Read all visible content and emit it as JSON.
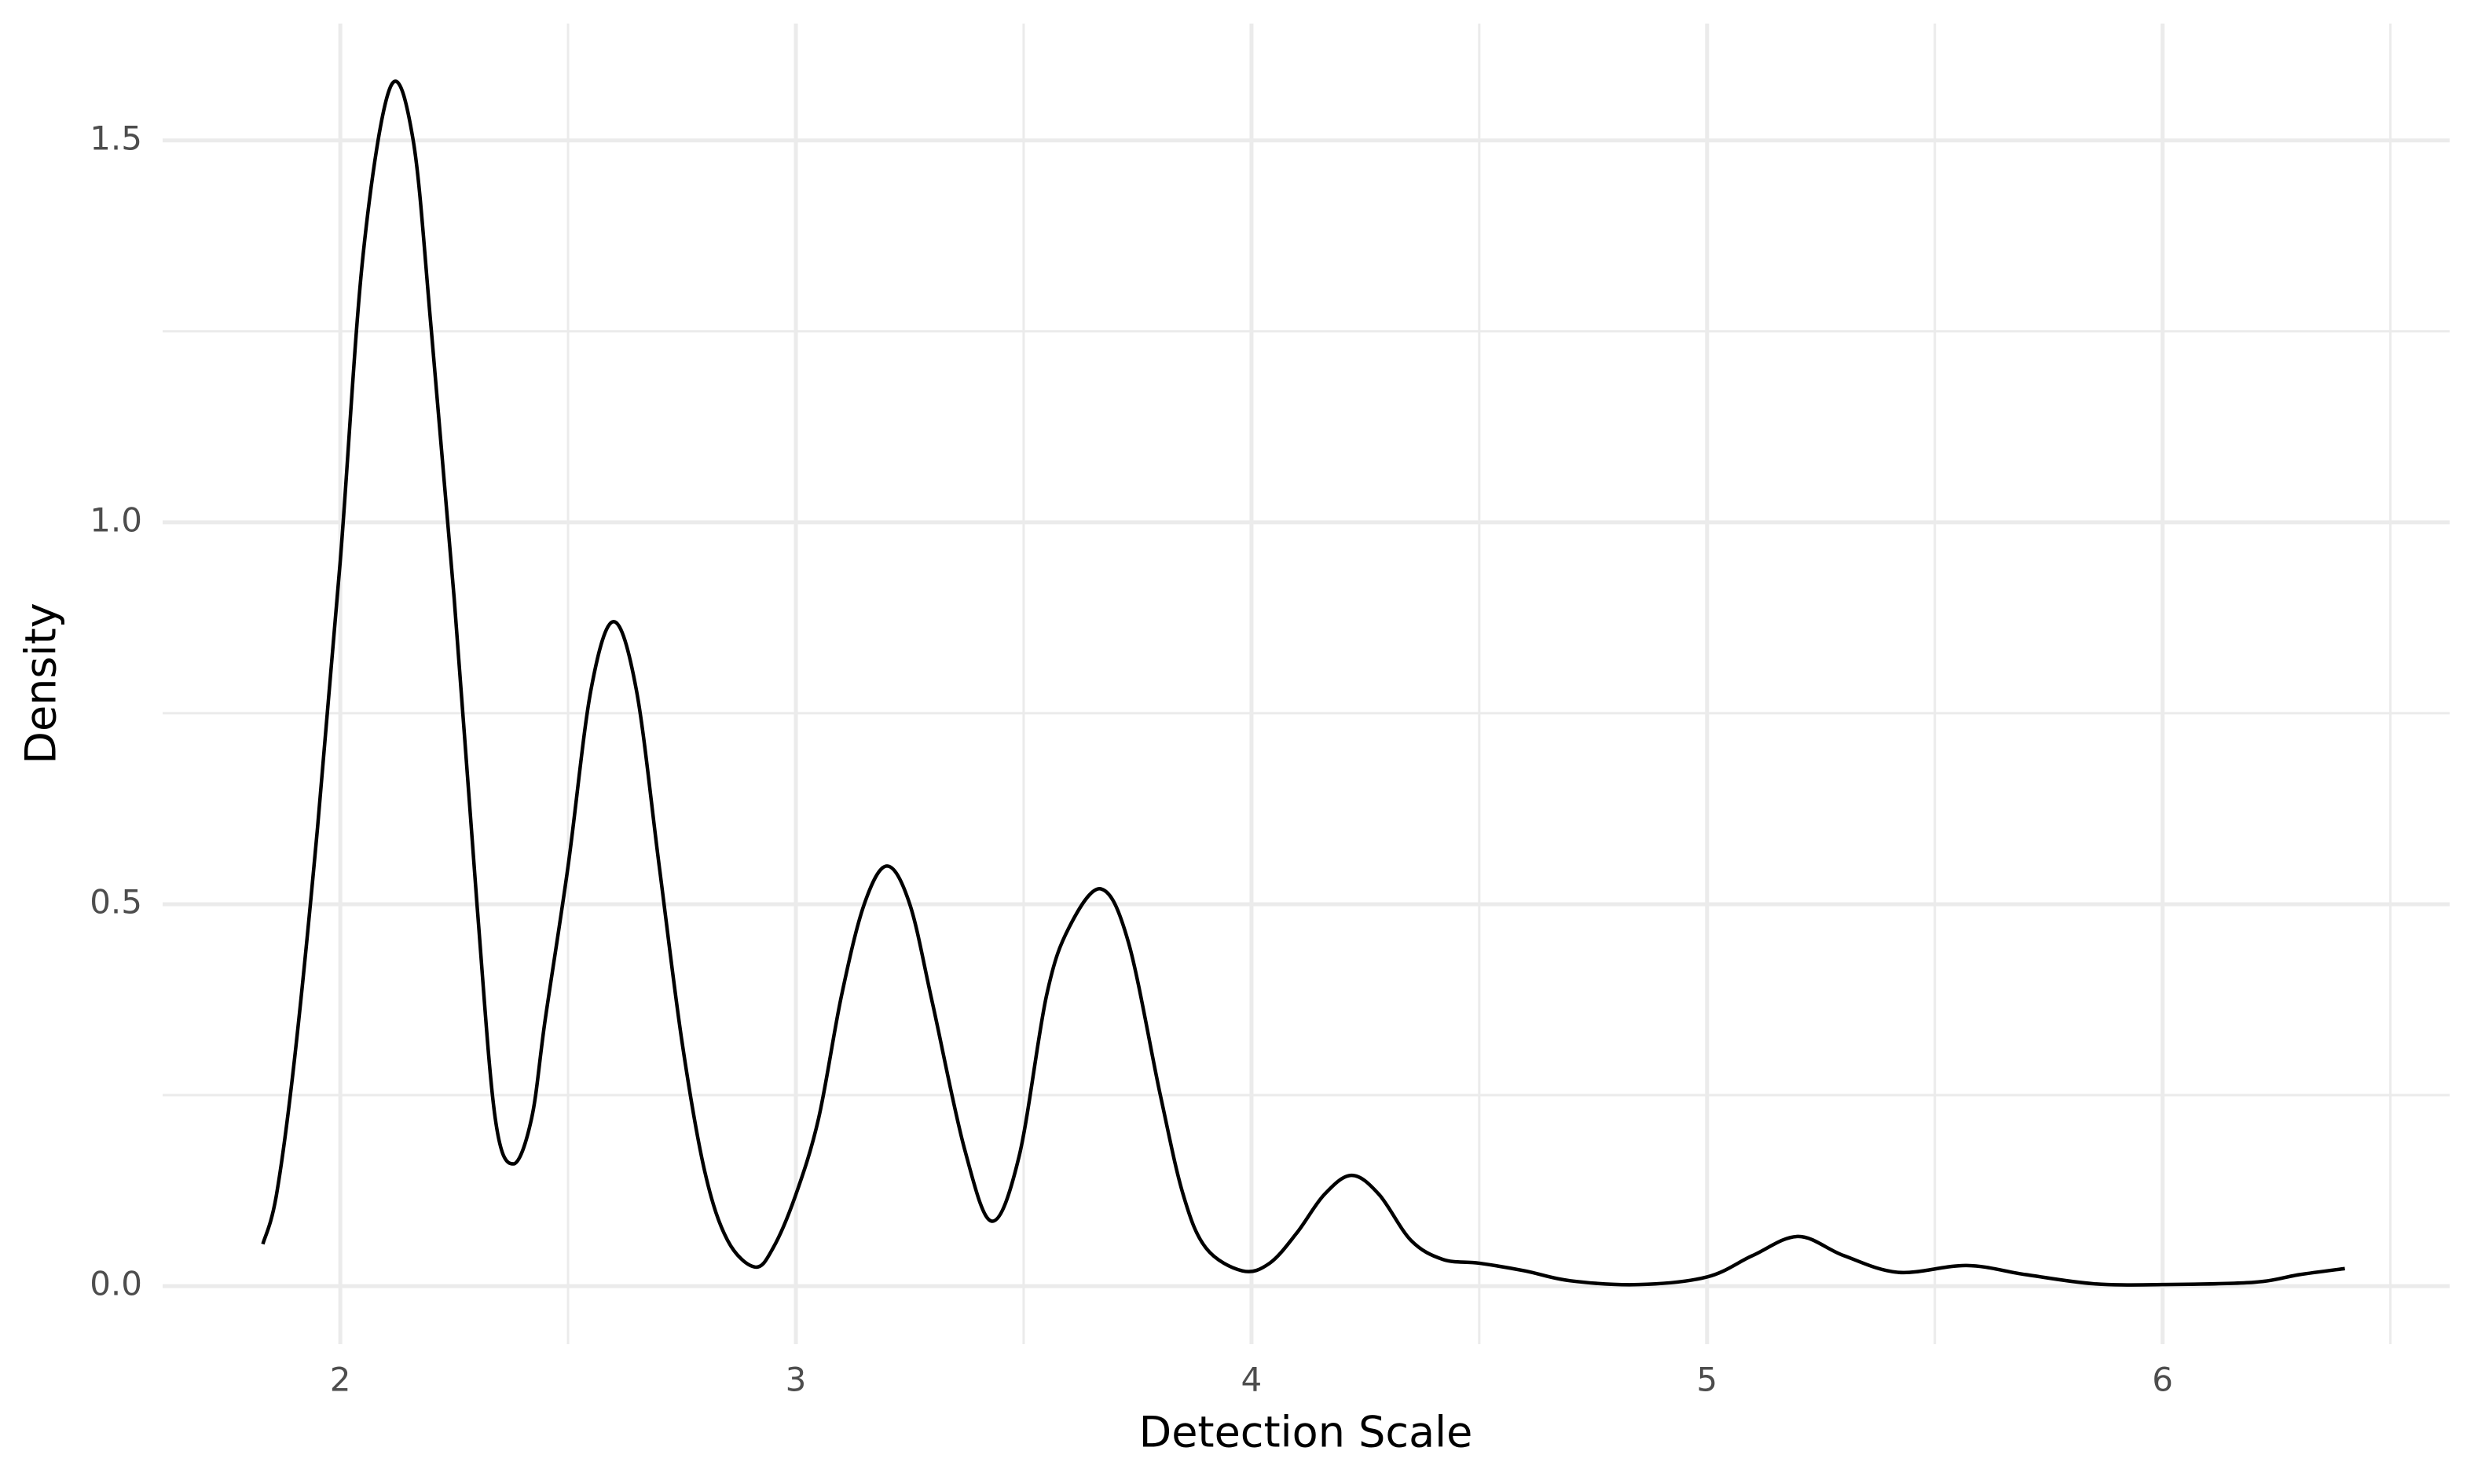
{
  "chart_data": {
    "type": "line",
    "x_label": "Detection Scale",
    "y_label": "Density",
    "x": [
      1.83,
      1.86,
      1.9,
      1.95,
      2.0,
      2.05,
      2.11,
      2.16,
      2.2,
      2.25,
      2.3,
      2.34,
      2.38,
      2.42,
      2.45,
      2.5,
      2.55,
      2.6,
      2.65,
      2.7,
      2.75,
      2.8,
      2.85,
      2.91,
      2.95,
      3.0,
      3.05,
      3.1,
      3.15,
      3.2,
      3.25,
      3.3,
      3.37,
      3.43,
      3.49,
      3.55,
      3.6,
      3.67,
      3.73,
      3.8,
      3.85,
      3.9,
      3.98,
      4.04,
      4.1,
      4.16,
      4.22,
      4.28,
      4.35,
      4.42,
      4.5,
      4.6,
      4.7,
      4.85,
      5.0,
      5.1,
      5.2,
      5.3,
      5.42,
      5.57,
      5.7,
      5.85,
      6.0,
      6.2,
      6.3,
      6.4
    ],
    "series": [
      {
        "color": "#000000",
        "values": [
          0.055,
          0.12,
          0.3,
          0.6,
          0.95,
          1.35,
          1.57,
          1.5,
          1.25,
          0.9,
          0.5,
          0.22,
          0.16,
          0.22,
          0.35,
          0.55,
          0.78,
          0.87,
          0.78,
          0.55,
          0.32,
          0.15,
          0.06,
          0.025,
          0.05,
          0.12,
          0.22,
          0.38,
          0.5,
          0.55,
          0.5,
          0.37,
          0.18,
          0.085,
          0.17,
          0.38,
          0.47,
          0.52,
          0.45,
          0.25,
          0.12,
          0.05,
          0.02,
          0.03,
          0.07,
          0.12,
          0.145,
          0.12,
          0.06,
          0.035,
          0.03,
          0.02,
          0.007,
          0.002,
          0.012,
          0.04,
          0.065,
          0.04,
          0.018,
          0.027,
          0.015,
          0.003,
          0.002,
          0.005,
          0.015,
          0.023
        ]
      }
    ],
    "xlim": [
      1.61,
      6.63
    ],
    "ylim": [
      -0.076,
      1.653
    ],
    "xticks": [
      2,
      3,
      4,
      5,
      6
    ],
    "yticks": [
      {
        "value": 0,
        "label": "0.0"
      },
      {
        "value": 0.5,
        "label": "0.5"
      },
      {
        "value": 1,
        "label": "1.0"
      },
      {
        "value": 1.5,
        "label": "1.5"
      }
    ],
    "grid": true
  }
}
